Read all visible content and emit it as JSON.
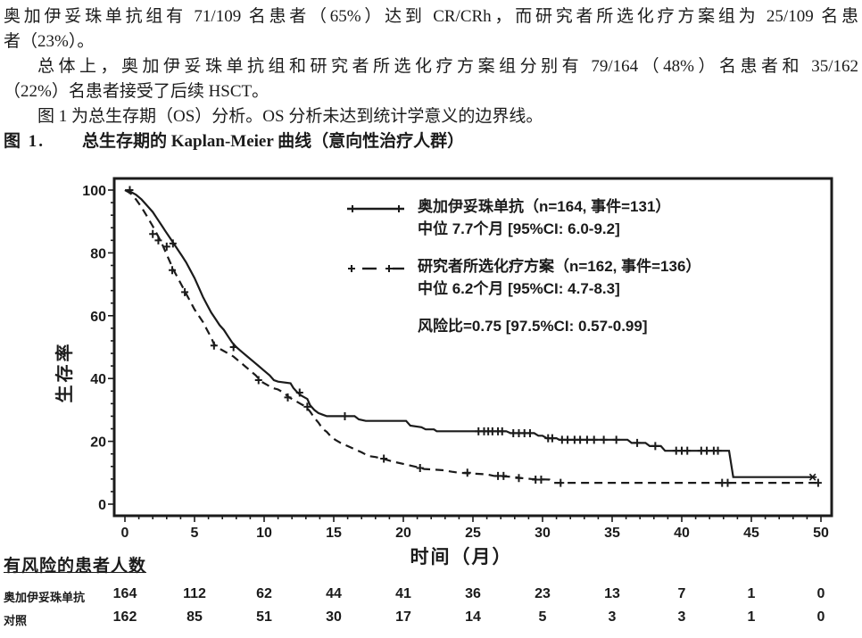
{
  "document": {
    "para1_line1": "奥加伊妥珠单抗组有 71/109 名患者（65%）达到 CR/CRh，而研究者所选化疗方案组为 25/109 名患",
    "para1_line2": "者（23%）。",
    "para2_line1": "总体上，奥加伊妥珠单抗组和研究者所选化疗方案组分别有 79/164（48%）名患者和 35/162",
    "para2_line2": "（22%）名患者接受了后续 HSCT。",
    "para3_line1": "图 1 为总生存期（OS）分析。OS 分析未达到统计学意义的边界线。",
    "figure_label": "图 1.",
    "figure_title": "总生存期的 Kaplan-Meier 曲线（意向性治疗人群）"
  },
  "chart_data": {
    "type": "line",
    "subtype": "kaplan-meier",
    "title": "总生存期的 Kaplan-Meier 曲线（意向性治疗人群）",
    "xlabel": "时间（月）",
    "ylabel": "生存率",
    "xlim": [
      0,
      50
    ],
    "ylim": [
      0,
      100
    ],
    "x_ticks": [
      0,
      5,
      10,
      15,
      20,
      25,
      30,
      35,
      40,
      45,
      50
    ],
    "y_ticks": [
      0,
      20,
      40,
      60,
      80,
      100
    ],
    "x_minor_step": 1,
    "y_minor_step": 4,
    "grid": false,
    "legend_position": "top-right-inside",
    "hazard_ratio_label": "风险比=0.75 [97.5%CI: 0.57-0.99]",
    "series": [
      {
        "name": "奥加伊妥珠单抗",
        "n": 164,
        "events": 131,
        "legend_label": "奥加伊妥珠单抗（n=164, 事件=131）",
        "median_label": "中位 7.7个月 [95%CI: 6.0-9.2]",
        "median_months": 7.7,
        "ci95": [
          6.0,
          9.2
        ],
        "line_style": "solid",
        "censor_marker": "plus",
        "end_marker": "asterisk",
        "points": [
          [
            0,
            100
          ],
          [
            0.4,
            99.5
          ],
          [
            0.8,
            98.5
          ],
          [
            1.2,
            97
          ],
          [
            1.6,
            95
          ],
          [
            2,
            93
          ],
          [
            2.3,
            91
          ],
          [
            2.6,
            89
          ],
          [
            2.9,
            87
          ],
          [
            3.2,
            85
          ],
          [
            3.5,
            83
          ],
          [
            3.8,
            81
          ],
          [
            4.1,
            79
          ],
          [
            4.4,
            77
          ],
          [
            4.7,
            74.5
          ],
          [
            5,
            72
          ],
          [
            5.3,
            69
          ],
          [
            5.6,
            66
          ],
          [
            5.9,
            63.5
          ],
          [
            6.2,
            61
          ],
          [
            6.5,
            59
          ],
          [
            6.8,
            57
          ],
          [
            7.1,
            55.5
          ],
          [
            7.4,
            53.5
          ],
          [
            7.7,
            51.5
          ],
          [
            8,
            50
          ],
          [
            8.4,
            48.5
          ],
          [
            8.8,
            47
          ],
          [
            9.2,
            45.5
          ],
          [
            9.6,
            44
          ],
          [
            10,
            42.5
          ],
          [
            10.4,
            41
          ],
          [
            10.7,
            39.5
          ],
          [
            11,
            39
          ],
          [
            11.9,
            38.5
          ],
          [
            12.1,
            37
          ],
          [
            12.4,
            35.5
          ],
          [
            12.7,
            34.5
          ],
          [
            13.1,
            33.5
          ],
          [
            13.3,
            31.5
          ],
          [
            13.6,
            30
          ],
          [
            13.9,
            29
          ],
          [
            14.2,
            28.5
          ],
          [
            14.5,
            28
          ],
          [
            16.5,
            28
          ],
          [
            16.8,
            27
          ],
          [
            17.3,
            26.5
          ],
          [
            20.2,
            26.5
          ],
          [
            20.5,
            25
          ],
          [
            21.3,
            24.5
          ],
          [
            21.6,
            23.8
          ],
          [
            22.2,
            23.8
          ],
          [
            22.4,
            23.2
          ],
          [
            27.4,
            23.2
          ],
          [
            27.7,
            22.6
          ],
          [
            29.4,
            22.6
          ],
          [
            29.7,
            21.8
          ],
          [
            30,
            21.8
          ],
          [
            30.3,
            21
          ],
          [
            31,
            21
          ],
          [
            31.2,
            20.5
          ],
          [
            36.1,
            20.5
          ],
          [
            36.4,
            19.5
          ],
          [
            37.4,
            19.5
          ],
          [
            37.7,
            18.5
          ],
          [
            38.5,
            18.5
          ],
          [
            38.8,
            17
          ],
          [
            43.4,
            17
          ],
          [
            43.7,
            8.6
          ],
          [
            49.4,
            8.6
          ]
        ],
        "censor_marks": [
          [
            0.35,
            100
          ],
          [
            3,
            82
          ],
          [
            3.45,
            83
          ],
          [
            7.8,
            50
          ],
          [
            12.55,
            35.5
          ],
          [
            15.8,
            28
          ],
          [
            25.4,
            23.2
          ],
          [
            25.8,
            23.2
          ],
          [
            26.1,
            23.2
          ],
          [
            26.4,
            23.2
          ],
          [
            26.8,
            23.2
          ],
          [
            27.1,
            23.2
          ],
          [
            27.9,
            22.6
          ],
          [
            28.3,
            22.6
          ],
          [
            28.7,
            22.6
          ],
          [
            29.1,
            22.6
          ],
          [
            30.4,
            21
          ],
          [
            30.7,
            21
          ],
          [
            31.4,
            20.5
          ],
          [
            31.8,
            20.5
          ],
          [
            32.3,
            20.5
          ],
          [
            32.7,
            20.5
          ],
          [
            33.2,
            20.5
          ],
          [
            33.7,
            20.5
          ],
          [
            34.4,
            20.5
          ],
          [
            35.3,
            20.5
          ],
          [
            36.8,
            19.5
          ],
          [
            38.1,
            18.5
          ],
          [
            39.6,
            17
          ],
          [
            40,
            17
          ],
          [
            40.4,
            17
          ],
          [
            41.4,
            17
          ],
          [
            41.8,
            17
          ],
          [
            42.3,
            17
          ],
          [
            42.6,
            17
          ]
        ]
      },
      {
        "name": "研究者所选化疗方案",
        "n": 162,
        "events": 136,
        "legend_label": "研究者所选化疗方案（n=162, 事件=136）",
        "median_label": "中位 6.2个月 [95%CI: 4.7-8.3]",
        "median_months": 6.2,
        "ci95": [
          4.7,
          8.3
        ],
        "line_style": "dashed",
        "censor_marker": "plus",
        "end_marker": "plus",
        "points": [
          [
            0,
            100
          ],
          [
            0.4,
            99
          ],
          [
            0.8,
            97
          ],
          [
            1.2,
            94.5
          ],
          [
            1.6,
            91.5
          ],
          [
            2,
            88.5
          ],
          [
            2.3,
            86
          ],
          [
            2.6,
            83.5
          ],
          [
            2.9,
            80.5
          ],
          [
            3.2,
            77.5
          ],
          [
            3.5,
            74.5
          ],
          [
            3.8,
            72
          ],
          [
            4.1,
            69.5
          ],
          [
            4.4,
            67
          ],
          [
            4.7,
            64.5
          ],
          [
            5,
            62
          ],
          [
            5.3,
            60
          ],
          [
            5.6,
            58
          ],
          [
            5.9,
            55.5
          ],
          [
            6.2,
            53
          ],
          [
            6.4,
            51
          ],
          [
            6.6,
            50
          ],
          [
            7,
            49
          ],
          [
            7.4,
            48
          ],
          [
            7.8,
            47
          ],
          [
            8.2,
            45.5
          ],
          [
            8.6,
            44
          ],
          [
            9,
            42.5
          ],
          [
            9.4,
            41
          ],
          [
            9.8,
            39
          ],
          [
            10.2,
            38
          ],
          [
            10.6,
            37
          ],
          [
            11,
            36.5
          ],
          [
            11.4,
            35.5
          ],
          [
            11.8,
            34
          ],
          [
            12.2,
            33
          ],
          [
            12.6,
            32
          ],
          [
            13,
            31
          ],
          [
            13.3,
            29.5
          ],
          [
            13.6,
            27.5
          ],
          [
            13.9,
            26
          ],
          [
            14.2,
            24
          ],
          [
            14.5,
            23
          ],
          [
            14.8,
            21.5
          ],
          [
            15.1,
            20.5
          ],
          [
            15.5,
            19.5
          ],
          [
            16,
            18.5
          ],
          [
            16.5,
            17.5
          ],
          [
            17,
            16.5
          ],
          [
            17.5,
            15.3
          ],
          [
            18,
            15
          ],
          [
            18.5,
            14.5
          ],
          [
            19.3,
            13.5
          ],
          [
            20.3,
            12.5
          ],
          [
            21,
            11.8
          ],
          [
            21.5,
            11.2
          ],
          [
            22.9,
            10.8
          ],
          [
            23.5,
            10.3
          ],
          [
            24,
            10
          ],
          [
            26,
            9.5
          ],
          [
            26.5,
            9
          ],
          [
            27.8,
            8.7
          ],
          [
            28.5,
            8.3
          ],
          [
            29.2,
            8
          ],
          [
            30.5,
            7.8
          ],
          [
            30.8,
            6.8
          ],
          [
            49.8,
            6.8
          ]
        ],
        "censor_marks": [
          [
            2,
            86
          ],
          [
            2.4,
            84
          ],
          [
            3.4,
            74.5
          ],
          [
            4.3,
            67.5
          ],
          [
            6.4,
            50.5
          ],
          [
            9.6,
            39.5
          ],
          [
            11.7,
            34
          ],
          [
            13.1,
            31
          ],
          [
            18.6,
            14.5
          ],
          [
            21.2,
            11.5
          ],
          [
            24.6,
            10
          ],
          [
            26.8,
            9
          ],
          [
            27.2,
            9
          ],
          [
            28.3,
            8.3
          ],
          [
            29.5,
            7.8
          ],
          [
            29.9,
            7.8
          ],
          [
            31.3,
            6.8
          ],
          [
            42.9,
            6.8
          ],
          [
            43.3,
            6.8
          ],
          [
            49.8,
            6.8
          ]
        ]
      }
    ]
  },
  "risk_table": {
    "header": "有风险的患者人数",
    "time_points": [
      0,
      5,
      10,
      15,
      20,
      25,
      30,
      35,
      40,
      45,
      50
    ],
    "rows": [
      {
        "label": "奥加伊妥珠单抗",
        "values": [
          164,
          112,
          62,
          44,
          41,
          36,
          23,
          13,
          7,
          1,
          0
        ]
      },
      {
        "label": "对照",
        "values": [
          162,
          85,
          51,
          30,
          17,
          14,
          5,
          3,
          3,
          1,
          0
        ]
      }
    ]
  },
  "colors": {
    "ink": "#1b1b1b",
    "background": "#ffffff"
  }
}
